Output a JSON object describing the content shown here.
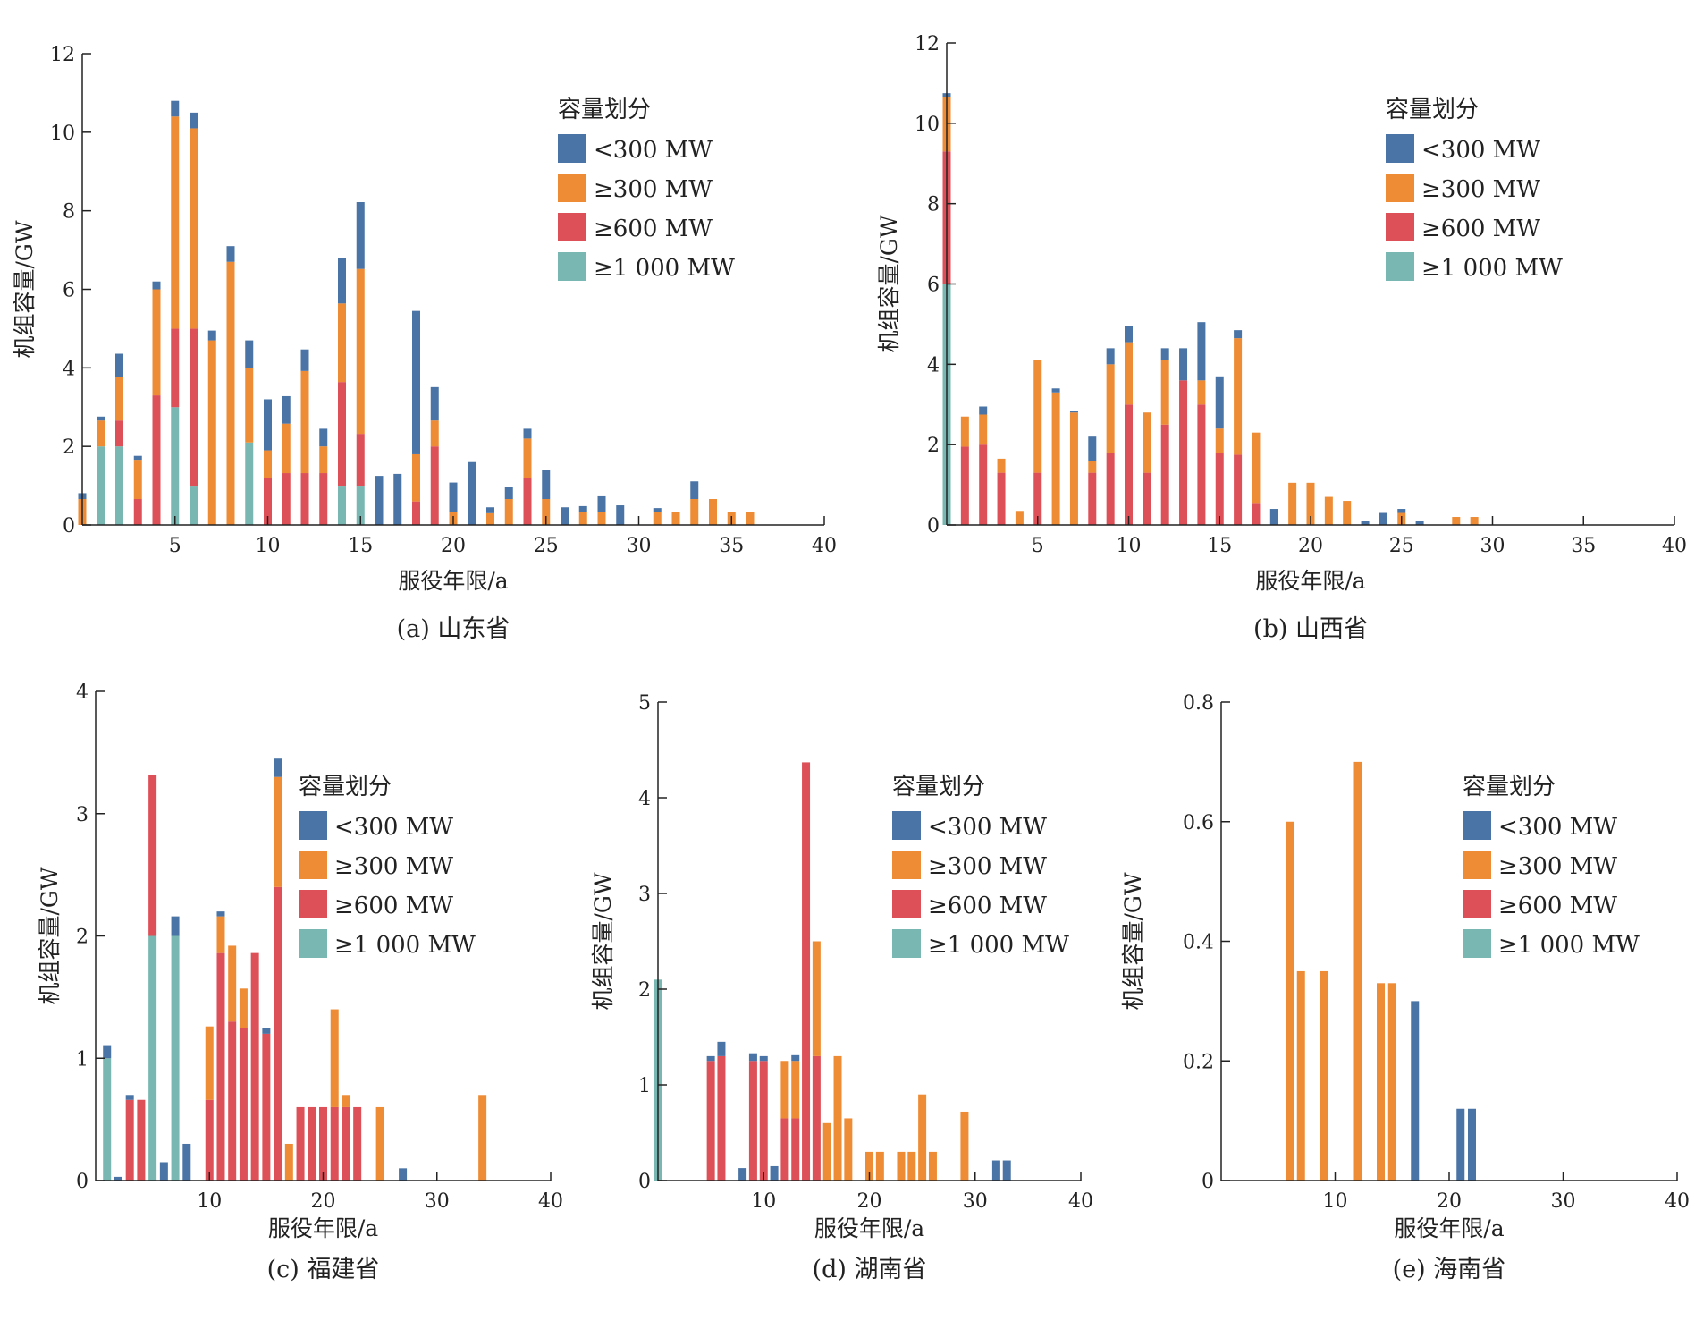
{
  "colors": {
    "lt300": "#4a74a5",
    "ge300": "#ee8c35",
    "ge600": "#dd5057",
    "ge1000": "#79b8b2",
    "axis": "#222222"
  },
  "legend": {
    "title": "容量划分",
    "items": [
      {
        "key": "lt300",
        "label": "<300 MW"
      },
      {
        "key": "ge300",
        "label": "≥300 MW"
      },
      {
        "key": "ge600",
        "label": "≥600 MW"
      },
      {
        "key": "ge1000",
        "label": "≥1 000 MW"
      }
    ]
  },
  "chart_data": [
    {
      "type": "bar",
      "stacked": true,
      "caption": "(a) 山东省",
      "xlabel": "服役年限/a",
      "ylabel": "机组容量/GW",
      "xlim": [
        0,
        40
      ],
      "ylim": [
        0,
        12
      ],
      "xticks": [
        5,
        10,
        15,
        20,
        25,
        30,
        35,
        40
      ],
      "yticks": [
        0,
        2,
        4,
        6,
        8,
        10,
        12
      ],
      "x": [
        0,
        1,
        2,
        3,
        4,
        5,
        6,
        7,
        8,
        9,
        10,
        11,
        12,
        13,
        14,
        15,
        16,
        17,
        18,
        19,
        20,
        21,
        22,
        23,
        24,
        25,
        26,
        27,
        28,
        29,
        30,
        31,
        32,
        33,
        34,
        35,
        36
      ],
      "series": [
        {
          "name": "≥1 000 MW",
          "key": "ge1000",
          "values": [
            0,
            2,
            2,
            0,
            0,
            3,
            1,
            0,
            0,
            2.1,
            0,
            0,
            0,
            0,
            1,
            1,
            0,
            0,
            0,
            0,
            0,
            0,
            0,
            0,
            0,
            0,
            0,
            0,
            0,
            0,
            0,
            0,
            0,
            0,
            0,
            0,
            0
          ]
        },
        {
          "name": "≥600 MW",
          "key": "ge600",
          "values": [
            0,
            0,
            0.66,
            0.66,
            3.3,
            2,
            4,
            0,
            0,
            0,
            1.2,
            1.32,
            1.32,
            1.32,
            2.64,
            1.32,
            0,
            0,
            0.6,
            2,
            0,
            0,
            0,
            0,
            1.2,
            0,
            0,
            0,
            0,
            0,
            0,
            0,
            0,
            0,
            0,
            0,
            0
          ]
        },
        {
          "name": "≥300 MW",
          "key": "ge300",
          "values": [
            0.66,
            0.66,
            1.1,
            1,
            2.7,
            5.4,
            5.1,
            4.7,
            6.7,
            1.9,
            0.7,
            1.26,
            2.6,
            0.68,
            2,
            4.2,
            0,
            0,
            1.2,
            0.66,
            0.33,
            0,
            0.3,
            0.66,
            1,
            0.66,
            0,
            0.33,
            0.33,
            0,
            0,
            0.33,
            0.33,
            0.66,
            0.66,
            0.33,
            0.33
          ]
        },
        {
          "name": "<300 MW",
          "key": "lt300",
          "values": [
            0.15,
            0.1,
            0.6,
            0.1,
            0.2,
            0.4,
            0.4,
            0.25,
            0.4,
            0.7,
            1.3,
            0.7,
            0.55,
            0.45,
            1.15,
            1.7,
            1.25,
            1.3,
            3.65,
            0.85,
            0.75,
            1.6,
            0.15,
            0.3,
            0.25,
            0.75,
            0.45,
            0.15,
            0.4,
            0.5,
            0,
            0.1,
            0,
            0.45,
            0,
            0,
            0
          ]
        }
      ]
    },
    {
      "type": "bar",
      "stacked": true,
      "caption": "(b) 山西省",
      "xlabel": "服役年限/a",
      "ylabel": "机组容量/GW",
      "xlim": [
        0,
        40
      ],
      "ylim": [
        0,
        12
      ],
      "xticks": [
        5,
        10,
        15,
        20,
        25,
        30,
        35,
        40
      ],
      "yticks": [
        0,
        2,
        4,
        6,
        8,
        10,
        12
      ],
      "x": [
        0,
        1,
        2,
        3,
        4,
        5,
        6,
        7,
        8,
        9,
        10,
        11,
        12,
        13,
        14,
        15,
        16,
        17,
        18,
        19,
        20,
        21,
        22,
        23,
        24,
        25,
        26,
        27,
        28,
        29
      ],
      "series": [
        {
          "name": "≥1 000 MW",
          "key": "ge1000",
          "values": [
            6,
            0,
            0,
            0,
            0,
            0,
            0,
            0,
            0,
            0,
            0,
            0,
            0,
            0,
            0,
            0,
            0,
            0,
            0,
            0,
            0,
            0,
            0,
            0,
            0,
            0,
            0,
            0,
            0,
            0
          ]
        },
        {
          "name": "≥600 MW",
          "key": "ge600",
          "values": [
            3.3,
            1.95,
            2,
            1.3,
            0,
            1.3,
            0,
            0,
            1.3,
            1.8,
            3,
            1.3,
            2.5,
            3.6,
            3,
            1.8,
            1.75,
            0.55,
            0,
            0,
            0,
            0,
            0,
            0,
            0,
            0,
            0,
            0,
            0,
            0
          ]
        },
        {
          "name": "≥300 MW",
          "key": "ge300",
          "values": [
            1.35,
            0.75,
            0.75,
            0.35,
            0.35,
            2.8,
            3.3,
            2.8,
            0.3,
            2.2,
            1.55,
            1.5,
            1.6,
            0,
            0.6,
            0.6,
            2.9,
            1.75,
            0,
            1.05,
            1.05,
            0.7,
            0.6,
            0,
            0,
            0.3,
            0,
            0,
            0.2,
            0.2
          ]
        },
        {
          "name": "<300 MW",
          "key": "lt300",
          "values": [
            0.1,
            0,
            0.2,
            0,
            0,
            0,
            0.1,
            0.05,
            0.6,
            0.4,
            0.4,
            0,
            0.3,
            0.8,
            1.45,
            1.3,
            0.2,
            0,
            0.4,
            0,
            0,
            0,
            0,
            0.1,
            0.3,
            0.1,
            0.1,
            0,
            0,
            0
          ]
        }
      ]
    },
    {
      "type": "bar",
      "stacked": true,
      "caption": "(c) 福建省",
      "xlabel": "服役年限/a",
      "ylabel": "机组容量/GW",
      "xlim": [
        0,
        40
      ],
      "ylim": [
        0,
        4
      ],
      "xticks": [
        10,
        20,
        30,
        40
      ],
      "yticks": [
        0,
        1,
        2,
        3,
        4
      ],
      "x": [
        1,
        2,
        3,
        4,
        5,
        6,
        7,
        8,
        10,
        11,
        12,
        13,
        14,
        15,
        16,
        17,
        18,
        19,
        20,
        21,
        22,
        23,
        25,
        27,
        34
      ],
      "series": [
        {
          "name": "≥1 000 MW",
          "key": "ge1000",
          "values": [
            1,
            0,
            0,
            0,
            2,
            0,
            2,
            0,
            0,
            0,
            0,
            0,
            0,
            0,
            0,
            0,
            0,
            0,
            0,
            0,
            0,
            0,
            0,
            0,
            0
          ]
        },
        {
          "name": "≥600 MW",
          "key": "ge600",
          "values": [
            0,
            0,
            0.66,
            0.66,
            1.32,
            0,
            0,
            0,
            0.66,
            1.86,
            1.3,
            1.25,
            1.86,
            1.2,
            2.4,
            0,
            0.6,
            0.6,
            0.6,
            0.6,
            0.6,
            0.6,
            0,
            0,
            0
          ]
        },
        {
          "name": "≥300 MW",
          "key": "ge300",
          "values": [
            0,
            0,
            0,
            0,
            0,
            0,
            0,
            0,
            0.6,
            0.3,
            0.62,
            0.32,
            0,
            0,
            0.9,
            0.3,
            0,
            0,
            0,
            0.8,
            0.1,
            0,
            0.6,
            0,
            0.7
          ]
        },
        {
          "name": "<300 MW",
          "key": "lt300",
          "values": [
            0.1,
            0.03,
            0.04,
            0,
            0,
            0.15,
            0.16,
            0.3,
            0,
            0.04,
            0,
            0,
            0,
            0.05,
            0.15,
            0,
            0,
            0,
            0,
            0,
            0,
            0,
            0,
            0.1,
            0
          ]
        }
      ]
    },
    {
      "type": "bar",
      "stacked": true,
      "caption": "(d) 湖南省",
      "xlabel": "服役年限/a",
      "ylabel": "机组容量/GW",
      "xlim": [
        0,
        40
      ],
      "ylim": [
        0,
        5
      ],
      "xticks": [
        10,
        20,
        30,
        40
      ],
      "yticks": [
        0,
        1,
        2,
        3,
        4,
        5
      ],
      "x": [
        0,
        5,
        6,
        8,
        9,
        10,
        11,
        12,
        13,
        14,
        15,
        16,
        17,
        18,
        20,
        21,
        23,
        24,
        25,
        26,
        29,
        32,
        33
      ],
      "series": [
        {
          "name": "≥1 000 MW",
          "key": "ge1000",
          "values": [
            2.1,
            0,
            0,
            0,
            0,
            0,
            0,
            0,
            0,
            0,
            0,
            0,
            0,
            0,
            0,
            0,
            0,
            0,
            0,
            0,
            0,
            0,
            0
          ]
        },
        {
          "name": "≥600 MW",
          "key": "ge600",
          "values": [
            0,
            1.25,
            1.3,
            0,
            1.25,
            1.25,
            0,
            0.65,
            0.65,
            4.37,
            1.3,
            0,
            0,
            0,
            0,
            0,
            0,
            0,
            0,
            0,
            0,
            0,
            0
          ]
        },
        {
          "name": "≥300 MW",
          "key": "ge300",
          "values": [
            0,
            0,
            0,
            0,
            0,
            0,
            0,
            0.6,
            0.6,
            0,
            1.2,
            0.6,
            1.3,
            0.65,
            0.3,
            0.3,
            0.3,
            0.3,
            0.9,
            0.3,
            0.72,
            0,
            0
          ]
        },
        {
          "name": "<300 MW",
          "key": "lt300",
          "values": [
            0,
            0.05,
            0.15,
            0.13,
            0.08,
            0.05,
            0.15,
            0,
            0.06,
            0,
            0,
            0,
            0,
            0,
            0,
            0,
            0,
            0,
            0,
            0,
            0,
            0.21,
            0.21
          ]
        }
      ]
    },
    {
      "type": "bar",
      "stacked": true,
      "caption": "(e) 海南省",
      "xlabel": "服役年限/a",
      "ylabel": "机组容量/GW",
      "xlim": [
        0,
        40
      ],
      "ylim": [
        0,
        0.8
      ],
      "xticks": [
        10,
        20,
        30,
        40
      ],
      "yticks": [
        0,
        0.2,
        0.4,
        0.6,
        0.8
      ],
      "ytick_labels": [
        "0",
        "0.2",
        "0.4",
        "0.6",
        "0.8"
      ],
      "x": [
        6,
        7,
        9,
        12,
        14,
        15,
        17,
        21,
        22
      ],
      "series": [
        {
          "name": "≥1 000 MW",
          "key": "ge1000",
          "values": [
            0,
            0,
            0,
            0,
            0,
            0,
            0,
            0,
            0
          ]
        },
        {
          "name": "≥600 MW",
          "key": "ge600",
          "values": [
            0,
            0,
            0,
            0,
            0,
            0,
            0,
            0,
            0
          ]
        },
        {
          "name": "≥300 MW",
          "key": "ge300",
          "values": [
            0.6,
            0.35,
            0.35,
            0.7,
            0.33,
            0.33,
            0,
            0,
            0
          ]
        },
        {
          "name": "<300 MW",
          "key": "lt300",
          "values": [
            0,
            0,
            0,
            0,
            0,
            0,
            0.3,
            0.12,
            0.12
          ]
        }
      ]
    }
  ]
}
